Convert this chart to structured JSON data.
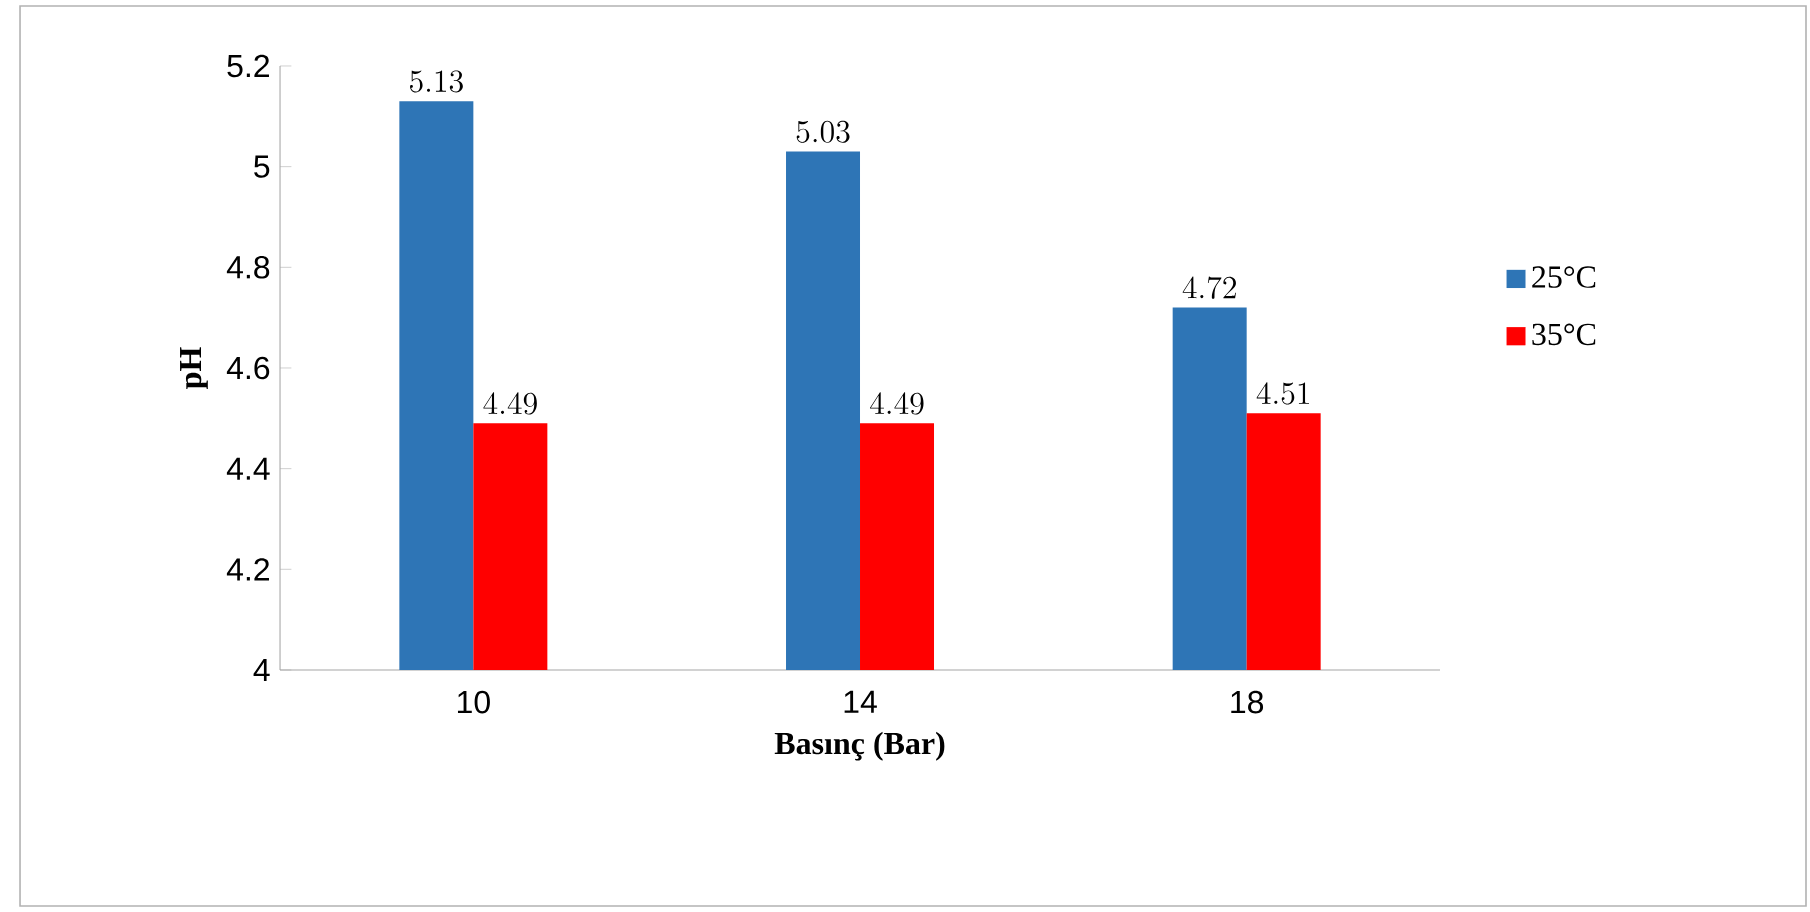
{
  "chart_data": {
    "type": "bar",
    "xlabel": "Basınç (Bar)",
    "ylabel": "pH",
    "categories": [
      "10",
      "14",
      "18"
    ],
    "series": [
      {
        "name": "25°C",
        "color": "#2e75b6",
        "values": [
          5.13,
          5.03,
          4.72
        ]
      },
      {
        "name": "35°C",
        "color": "#ff0000",
        "values": [
          4.49,
          4.49,
          4.51
        ]
      }
    ],
    "ylim": [
      4,
      5.2
    ],
    "yticks": [
      4,
      4.2,
      4.4,
      4.6,
      4.8,
      5,
      5.2
    ],
    "data_labels": true,
    "legend": "right",
    "grid": false
  }
}
